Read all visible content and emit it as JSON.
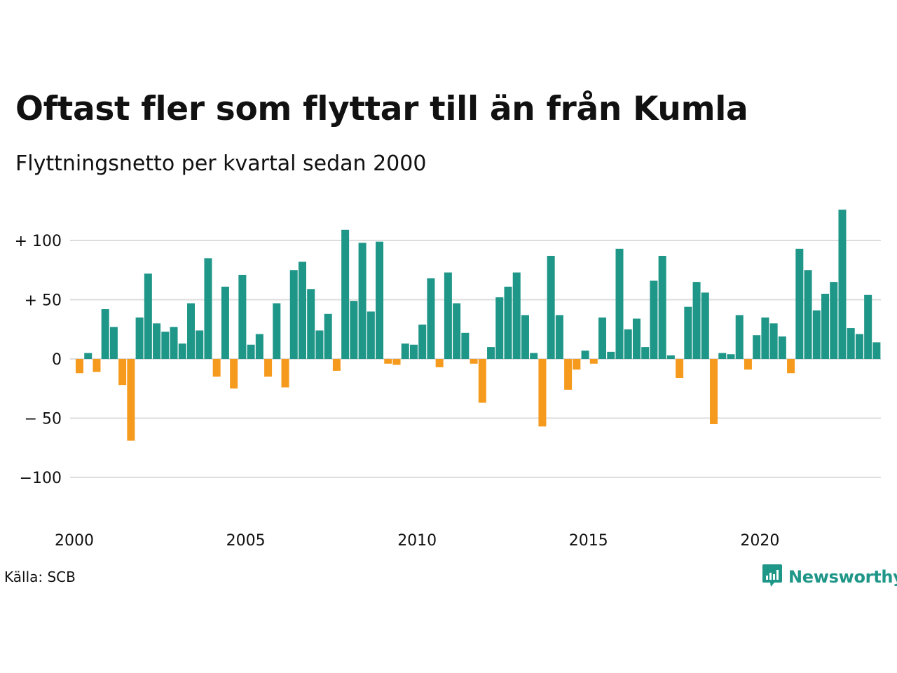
{
  "title": "Oftast fler som flyttar till än från Kumla",
  "subtitle": "Flyttningsnetto per kvartal sedan 2000",
  "source": "Källa: SCB",
  "brand": {
    "name": "Newsworthy",
    "icon": "newsworthy-chart-bubble-icon",
    "color": "#1e9688"
  },
  "colors": {
    "positive": "#1e9688",
    "negative": "#f59a1c",
    "grid": "#dddddd"
  },
  "chart_data": {
    "type": "bar",
    "x_start": "2000 Q1",
    "frequency": "quarterly",
    "values": [
      -12,
      5,
      -11,
      42,
      27,
      -22,
      -69,
      35,
      72,
      30,
      23,
      27,
      13,
      47,
      24,
      85,
      -15,
      61,
      -25,
      71,
      12,
      21,
      -15,
      47,
      -24,
      75,
      82,
      59,
      24,
      38,
      -10,
      109,
      49,
      98,
      40,
      99,
      -4,
      -5,
      13,
      12,
      29,
      68,
      -7,
      73,
      47,
      22,
      -4,
      -37,
      10,
      52,
      61,
      73,
      37,
      5,
      -57,
      87,
      37,
      -26,
      -9,
      7,
      -4,
      35,
      6,
      93,
      25,
      34,
      10,
      66,
      87,
      3,
      -16,
      44,
      65,
      56,
      -55,
      5,
      4,
      37,
      -9,
      20,
      35,
      30,
      19,
      -12,
      93,
      75,
      41,
      55,
      65,
      126,
      26,
      21,
      54,
      14
    ],
    "y_ticks": [
      {
        "value": 100,
        "label": "+ 100"
      },
      {
        "value": 50,
        "label": "+  50"
      },
      {
        "value": 0,
        "label": "0"
      },
      {
        "value": -50,
        "label": "− 50"
      },
      {
        "value": -100,
        "label": "−100"
      }
    ],
    "x_ticks": [
      "2000",
      "2005",
      "2010",
      "2015",
      "2020"
    ],
    "ylim": [
      -130,
      130
    ],
    "grid": true,
    "legend": "none"
  }
}
